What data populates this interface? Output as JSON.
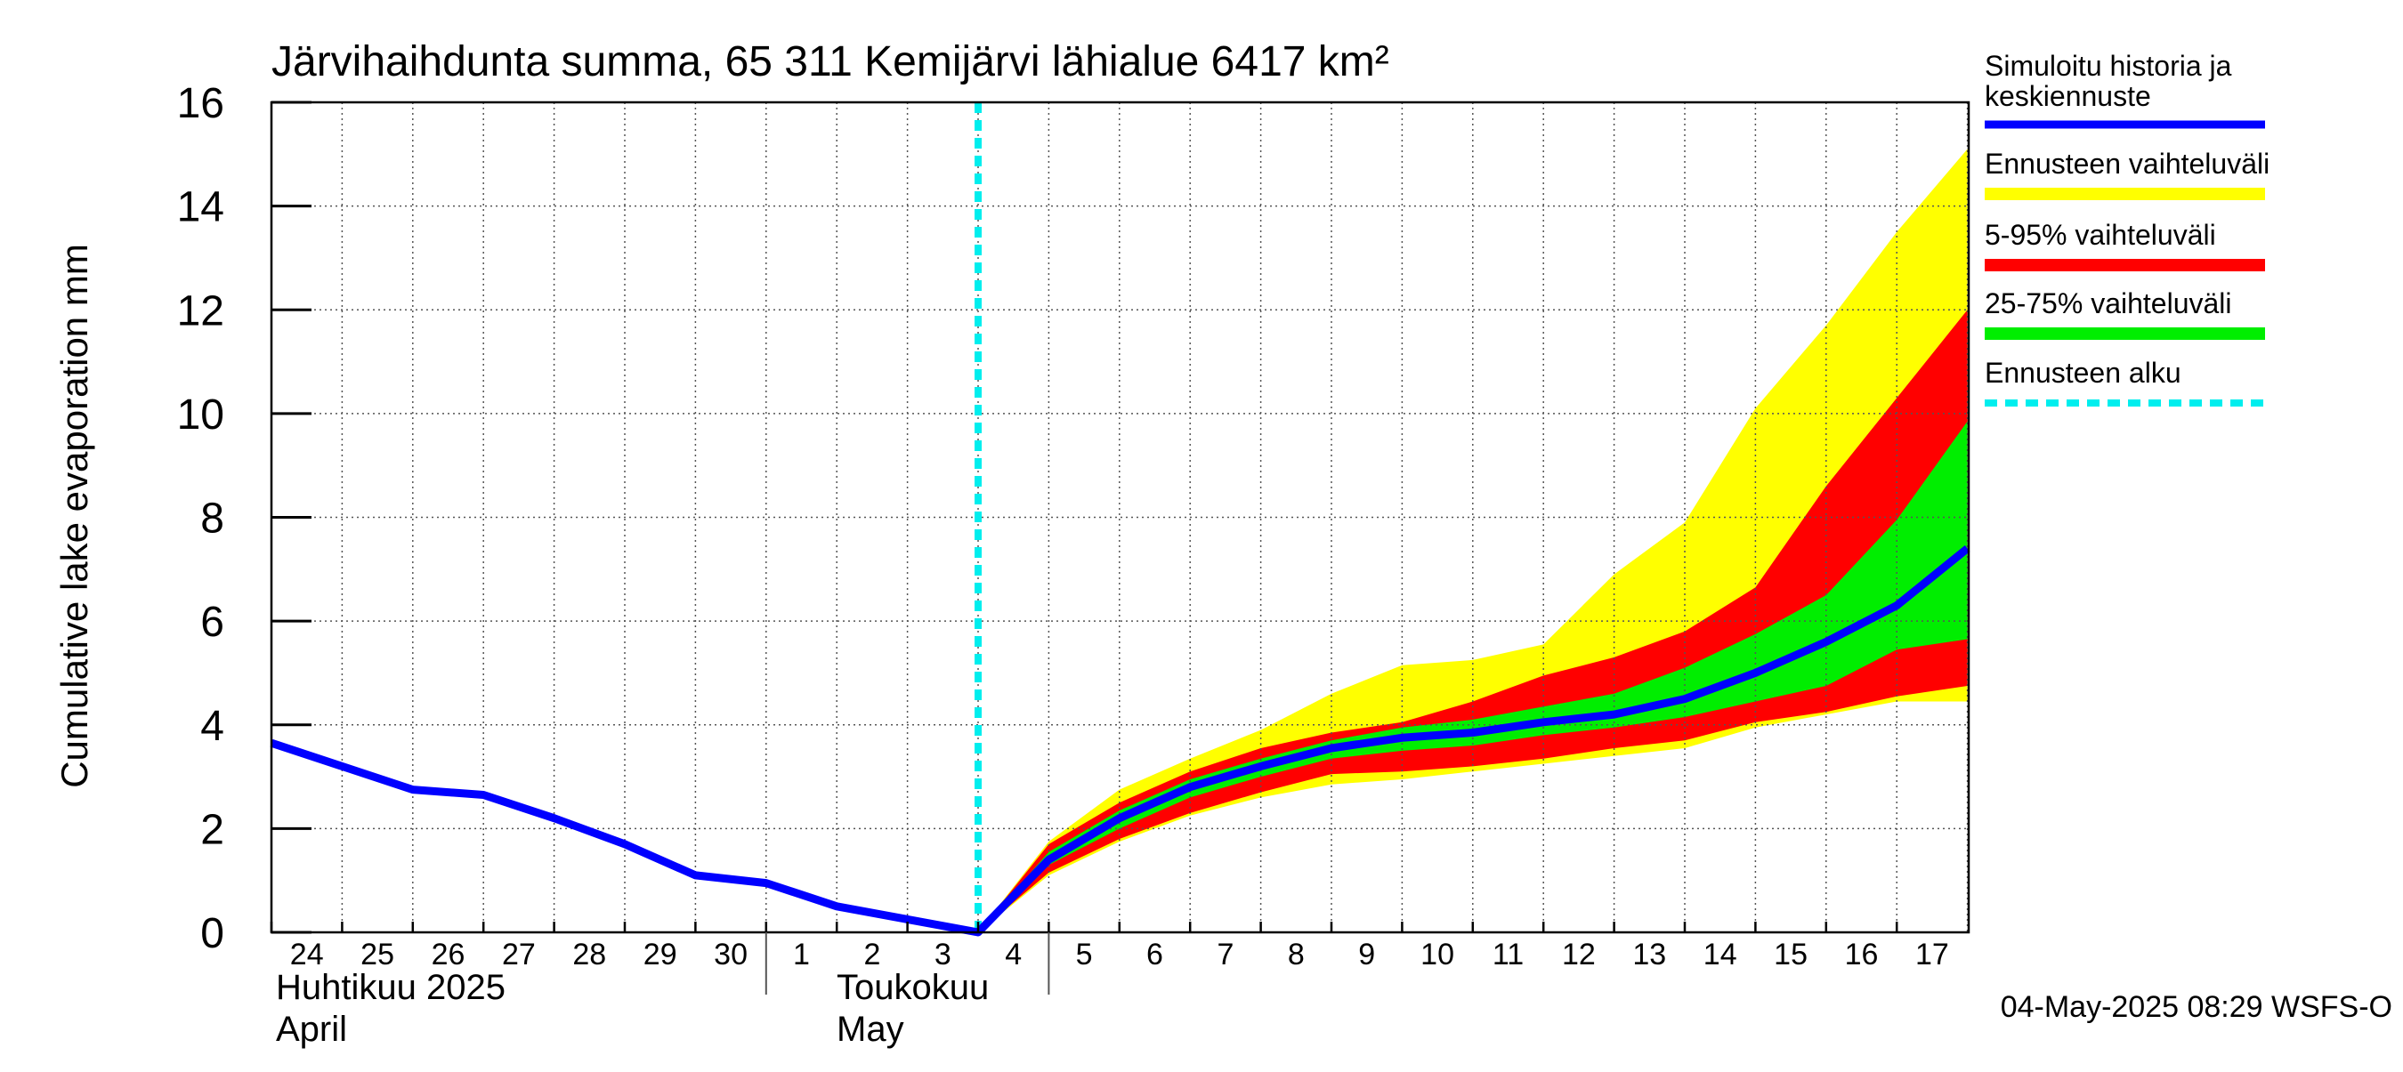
{
  "chart_data": {
    "type": "area",
    "title": "Järvihaihdunta summa, 65 311 Kemijärvi lähialue 6417 km²",
    "ylabel": "Cumulative lake evaporation   mm",
    "ylim": [
      0,
      16
    ],
    "yticks": [
      "0",
      "2",
      "4",
      "6",
      "8",
      "10",
      "12",
      "14",
      "16"
    ],
    "grid": true,
    "legend_position": "right",
    "x_day_labels": [
      "24",
      "25",
      "26",
      "27",
      "28",
      "29",
      "30",
      "1",
      "2",
      "3",
      "4",
      "5",
      "6",
      "7",
      "8",
      "9",
      "10",
      "11",
      "12",
      "13",
      "14",
      "15",
      "16",
      "17"
    ],
    "month_labels": [
      {
        "line1": "Huhtikuu  2025",
        "line2": "April"
      },
      {
        "line1": "Toukokuu",
        "line2": "May"
      }
    ],
    "forecast_start": "2025-05-04",
    "history": {
      "name": "Simuloitu historia ja keskiennuste",
      "x": [
        "2025-04-24",
        "2025-04-25",
        "2025-04-26",
        "2025-04-27",
        "2025-04-28",
        "2025-04-29",
        "2025-04-30",
        "2025-05-01",
        "2025-05-02",
        "2025-05-03",
        "2025-05-04"
      ],
      "y": [
        3.65,
        3.2,
        2.75,
        2.65,
        2.2,
        1.7,
        1.1,
        0.95,
        0.5,
        0.25,
        0.0
      ]
    },
    "forecast_x": [
      "2025-05-04",
      "2025-05-05",
      "2025-05-06",
      "2025-05-07",
      "2025-05-08",
      "2025-05-09",
      "2025-05-10",
      "2025-05-11",
      "2025-05-12",
      "2025-05-13",
      "2025-05-14",
      "2025-05-15",
      "2025-05-16",
      "2025-05-17",
      "2025-05-18"
    ],
    "median": [
      0.0,
      1.4,
      2.2,
      2.8,
      3.2,
      3.55,
      3.75,
      3.85,
      4.05,
      4.2,
      4.5,
      5.0,
      5.6,
      6.3,
      7.4
    ],
    "band_min_max": {
      "low": [
        0.0,
        1.1,
        1.75,
        2.25,
        2.6,
        2.85,
        2.95,
        3.1,
        3.25,
        3.4,
        3.55,
        3.95,
        4.2,
        4.45,
        4.45
      ],
      "high": [
        0.0,
        1.75,
        2.75,
        3.35,
        3.9,
        4.6,
        5.15,
        5.25,
        5.55,
        6.9,
        7.9,
        10.1,
        11.7,
        13.5,
        15.1
      ]
    },
    "band_5_95": {
      "low": [
        0.0,
        1.15,
        1.8,
        2.3,
        2.7,
        3.05,
        3.1,
        3.2,
        3.35,
        3.55,
        3.7,
        4.05,
        4.25,
        4.55,
        4.75
      ],
      "high": [
        0.0,
        1.7,
        2.5,
        3.1,
        3.55,
        3.85,
        4.05,
        4.45,
        4.95,
        5.3,
        5.8,
        6.65,
        8.6,
        10.3,
        12.0
      ]
    },
    "band_25_75": {
      "low": [
        0.0,
        1.3,
        2.0,
        2.6,
        3.0,
        3.35,
        3.5,
        3.6,
        3.8,
        3.95,
        4.15,
        4.45,
        4.75,
        5.45,
        5.65
      ],
      "high": [
        0.0,
        1.55,
        2.35,
        2.95,
        3.35,
        3.7,
        3.95,
        4.1,
        4.35,
        4.6,
        5.1,
        5.75,
        6.5,
        7.95,
        9.85
      ]
    },
    "legend": [
      {
        "label": "Simuloitu historia ja keskiennuste",
        "color": "#0000ff",
        "style": "solid"
      },
      {
        "label": "Ennusteen vaihteluväli",
        "color": "#ffff00",
        "style": "solid"
      },
      {
        "label": "5-95% vaihteluväli",
        "color": "#ff0000",
        "style": "solid"
      },
      {
        "label": "25-75% vaihteluväli",
        "color": "#00ee00",
        "style": "solid"
      },
      {
        "label": "Ennusteen alku",
        "color": "#00eeee",
        "style": "dashed"
      }
    ],
    "footer": "04-May-2025 08:29 WSFS-O"
  }
}
